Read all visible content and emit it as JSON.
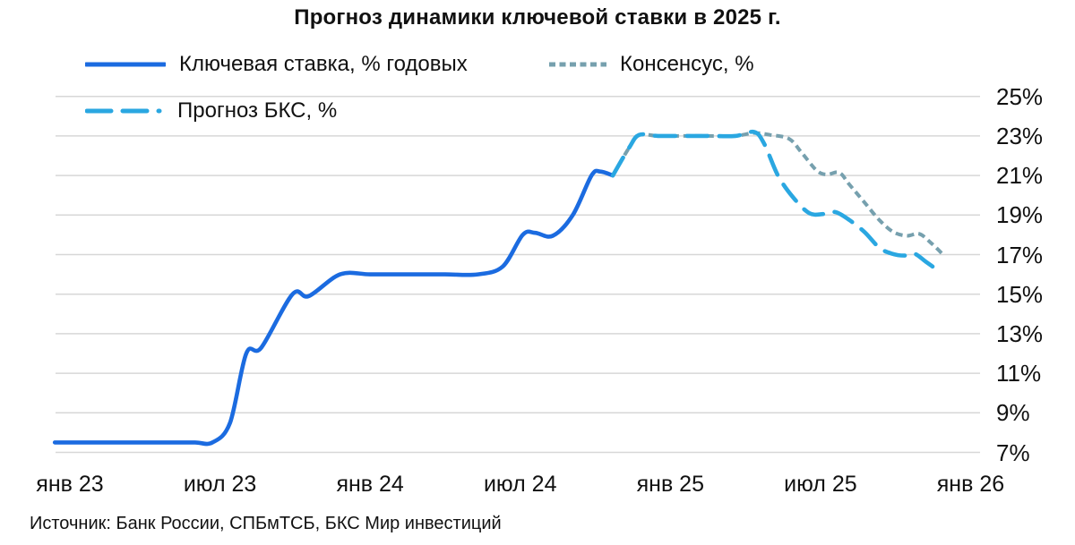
{
  "title": "Прогноз динамики ключевой ставки в 2025 г.",
  "source": "Источник: Банк России, СПБмТСБ, БКС Мир инвестиций",
  "colors": {
    "key_rate": "#1b6be0",
    "consensus": "#76a0ae",
    "bks": "#2aa7e1",
    "gridline": "#d7d7d7",
    "text": "#111111",
    "background": "#ffffff"
  },
  "chart_data": {
    "type": "line",
    "title": "Прогноз динамики ключевой ставки в 2025 г.",
    "x_axis": {
      "unit": "months since Jan 2023",
      "range": [
        -0.7,
        36.6
      ],
      "ticks": [
        {
          "t": 0,
          "label": "янв 23"
        },
        {
          "t": 6,
          "label": "июл 23"
        },
        {
          "t": 12,
          "label": "янв 24"
        },
        {
          "t": 18,
          "label": "июл 24"
        },
        {
          "t": 24,
          "label": "янв 25"
        },
        {
          "t": 30,
          "label": "июл 25"
        },
        {
          "t": 36,
          "label": "янв 26"
        }
      ]
    },
    "y_axis": {
      "unit": "%",
      "range": [
        7,
        25
      ],
      "grid": true,
      "ticks": [
        {
          "v": 25,
          "label": "25%"
        },
        {
          "v": 23,
          "label": "23%"
        },
        {
          "v": 21,
          "label": "21%"
        },
        {
          "v": 19,
          "label": "19%"
        },
        {
          "v": 17,
          "label": "17%"
        },
        {
          "v": 15,
          "label": "15%"
        },
        {
          "v": 13,
          "label": "13%"
        },
        {
          "v": 11,
          "label": "11%"
        },
        {
          "v": 9,
          "label": "9%"
        },
        {
          "v": 7,
          "label": "7%"
        }
      ]
    },
    "legend_position": "top-left",
    "series": [
      {
        "id": "key_rate",
        "name": "Ключевая ставка, % годовых",
        "style": "solid",
        "color": "#1b6be0",
        "points": [
          [
            -0.6,
            7.5
          ],
          [
            0,
            7.5
          ],
          [
            1,
            7.5
          ],
          [
            2,
            7.5
          ],
          [
            3,
            7.5
          ],
          [
            4,
            7.5
          ],
          [
            5,
            7.5
          ],
          [
            5.7,
            7.5
          ],
          [
            6.4,
            8.5
          ],
          [
            7.05,
            12
          ],
          [
            7.65,
            12.3
          ],
          [
            8.9,
            15
          ],
          [
            9.55,
            14.9
          ],
          [
            10.8,
            16
          ],
          [
            12,
            16
          ],
          [
            13.5,
            16
          ],
          [
            15,
            16
          ],
          [
            16.3,
            16
          ],
          [
            17.3,
            16.4
          ],
          [
            18.1,
            18
          ],
          [
            18.6,
            18.1
          ],
          [
            19.3,
            17.95
          ],
          [
            20.1,
            19
          ],
          [
            20.85,
            21
          ],
          [
            21.2,
            21.2
          ],
          [
            21.7,
            21
          ]
        ]
      },
      {
        "id": "consensus",
        "name": "Консенсус, %",
        "style": "dashed-short",
        "color": "#76a0ae",
        "points": [
          [
            21.7,
            21
          ],
          [
            22.35,
            22.4
          ],
          [
            22.75,
            23.05
          ],
          [
            23.5,
            23
          ],
          [
            24.5,
            23
          ],
          [
            25.5,
            23
          ],
          [
            26.6,
            23
          ],
          [
            27.35,
            23.15
          ],
          [
            28.0,
            23.05
          ],
          [
            28.75,
            22.85
          ],
          [
            29.25,
            22.15
          ],
          [
            29.85,
            21.25
          ],
          [
            30.25,
            21.05
          ],
          [
            30.75,
            21.15
          ],
          [
            31.15,
            20.55
          ],
          [
            31.75,
            19.65
          ],
          [
            32.35,
            18.75
          ],
          [
            32.9,
            18.15
          ],
          [
            33.45,
            17.95
          ],
          [
            33.95,
            18.05
          ],
          [
            34.45,
            17.55
          ],
          [
            34.9,
            17.0
          ]
        ]
      },
      {
        "id": "bks",
        "name": "Прогноз БКС, %",
        "style": "dashed-long",
        "color": "#2aa7e1",
        "points": [
          [
            21.7,
            21
          ],
          [
            22.35,
            22.4
          ],
          [
            22.75,
            23.05
          ],
          [
            23.5,
            23
          ],
          [
            24.5,
            23
          ],
          [
            25.5,
            23
          ],
          [
            26.6,
            23
          ],
          [
            27.35,
            23.2
          ],
          [
            27.75,
            22.6
          ],
          [
            28.3,
            21
          ],
          [
            28.9,
            19.9
          ],
          [
            29.55,
            19.1
          ],
          [
            30.1,
            19.05
          ],
          [
            30.6,
            19.15
          ],
          [
            31.15,
            18.75
          ],
          [
            31.75,
            18.15
          ],
          [
            32.35,
            17.35
          ],
          [
            32.85,
            17.05
          ],
          [
            33.35,
            16.95
          ],
          [
            33.75,
            17.05
          ],
          [
            34.2,
            16.65
          ],
          [
            34.75,
            16.15
          ]
        ]
      }
    ]
  }
}
